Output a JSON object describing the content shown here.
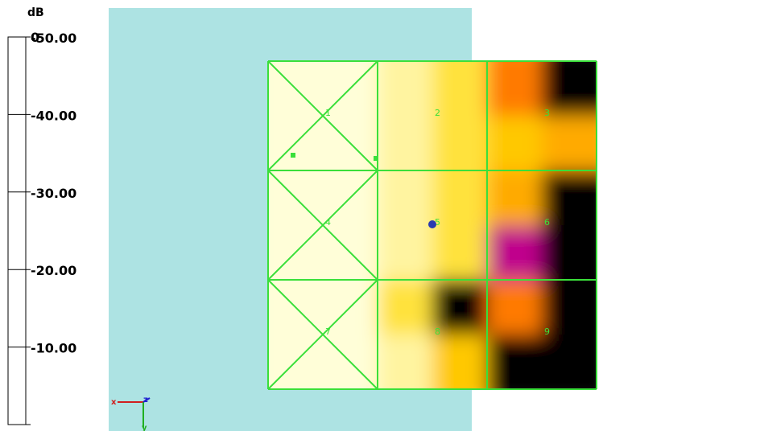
{
  "chart_data": {
    "type": "heatmap",
    "unit": "dB",
    "range": [
      -50,
      0
    ],
    "colorbar": {
      "top_label": "0",
      "tick_labels": [
        "-10.00",
        "-20.00",
        "-30.00",
        "-40.00",
        "-50.00"
      ],
      "ticks": [
        0,
        -10,
        -20,
        -30,
        -40,
        -50
      ],
      "bands": [
        {
          "from": 0,
          "to": -3.33,
          "color": "#fffed8"
        },
        {
          "from": -3.33,
          "to": -6.67,
          "color": "#fff4a0"
        },
        {
          "from": -6.67,
          "to": -10,
          "color": "#ffe23c"
        },
        {
          "from": -10,
          "to": -13.33,
          "color": "#ffc800"
        },
        {
          "from": -13.33,
          "to": -16.67,
          "color": "#ffaa00"
        },
        {
          "from": -16.67,
          "to": -20,
          "color": "#ff7a00"
        },
        {
          "from": -20,
          "to": -23.33,
          "color": "#ff2800"
        },
        {
          "from": -23.33,
          "to": -26.67,
          "color": "#e00040"
        },
        {
          "from": -26.67,
          "to": -30,
          "color": "#c0008c"
        },
        {
          "from": -30,
          "to": -33.33,
          "color": "#8a00b0"
        },
        {
          "from": -33.33,
          "to": -36.67,
          "color": "#5a10c8"
        },
        {
          "from": -36.67,
          "to": -40,
          "color": "#2020d0"
        },
        {
          "from": -40,
          "to": -43.33,
          "color": "#0030b0"
        },
        {
          "from": -43.33,
          "to": -46.67,
          "color": "#00286a"
        },
        {
          "from": -46.67,
          "to": -50,
          "color": "#000000"
        }
      ]
    },
    "grid": {
      "rows": 3,
      "cols": 3,
      "cell_labels": [
        "1",
        "2",
        "3",
        "4",
        "5",
        "6",
        "7",
        "8",
        "9"
      ],
      "crossed_cells": [
        1,
        4,
        7
      ],
      "line_color": "#3adf3a"
    },
    "field": {
      "rows": 6,
      "cols": 6,
      "values_db": [
        [
          -2,
          -3,
          -5,
          -8,
          -20,
          -50
        ],
        [
          -2,
          -3,
          -6,
          -9,
          -12,
          -16
        ],
        [
          -2,
          -3,
          -5,
          -8,
          -14,
          -50
        ],
        [
          -2,
          -3,
          -5,
          -8,
          -30,
          -50
        ],
        [
          -2,
          -3,
          -7,
          -50,
          -18,
          -50
        ],
        [
          -2,
          -3,
          -6,
          -12,
          -50,
          -50
        ]
      ]
    },
    "colors": {
      "background_panel": "#ade3e3",
      "marker": "#2a3ab0"
    },
    "axes_triad": {
      "x": "x",
      "y": "y",
      "z": "z"
    }
  }
}
